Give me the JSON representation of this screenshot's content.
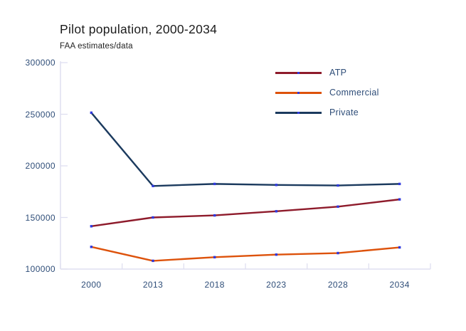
{
  "chart_data": {
    "type": "line",
    "title": "Pilot population, 2000-2034",
    "subtitle": "FAA estimates/data",
    "categories": [
      "2000",
      "2013",
      "2018",
      "2023",
      "2028",
      "2034"
    ],
    "series": [
      {
        "name": "ATP",
        "color": "#8e1b2b",
        "values": [
          141500,
          150000,
          152000,
          156000,
          160500,
          167500
        ]
      },
      {
        "name": "Commercial",
        "color": "#dd520b",
        "values": [
          121500,
          108000,
          111500,
          114000,
          115500,
          121000
        ]
      },
      {
        "name": "Private",
        "color": "#1b3a5e",
        "values": [
          251500,
          180500,
          182500,
          181500,
          181000,
          182500
        ]
      }
    ],
    "y_axis": {
      "min": 100000,
      "max": 300000,
      "tick_interval": 50000,
      "tick_labels": [
        "300000",
        "250000",
        "200000",
        "150000",
        "100000"
      ]
    },
    "x_axis": {
      "labels": [
        "2000",
        "2013",
        "2018",
        "2023",
        "2028",
        "2034"
      ]
    },
    "legend_position": "top-right-inside",
    "grid": false,
    "marker_color": "#2f38dd",
    "axis_color": "#dfdff0",
    "label_color": "#2e4d78"
  }
}
